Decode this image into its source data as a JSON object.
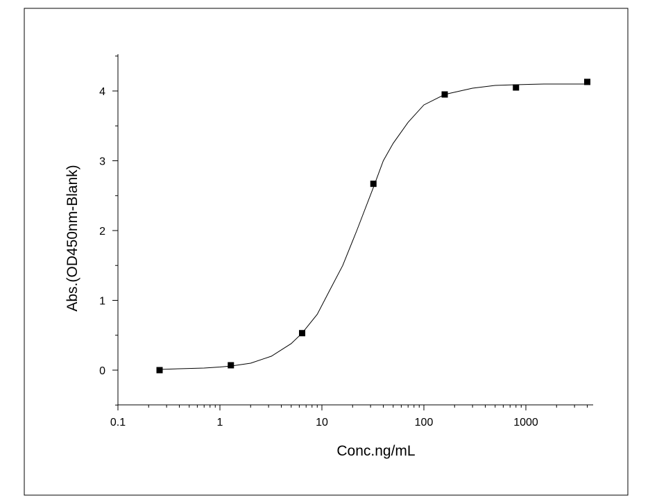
{
  "chart_data": {
    "type": "scatter",
    "xlabel": "Conc.ng/mL",
    "ylabel": "Abs.(OD450nm-Blank)",
    "x_scale": "log",
    "xlim": [
      0.1,
      5000
    ],
    "ylim": [
      -0.5,
      4.5
    ],
    "x_ticks": [
      0.1,
      1,
      10,
      100,
      1000
    ],
    "x_tick_labels": [
      "0.1",
      "1",
      "10",
      "100",
      "1000"
    ],
    "y_ticks": [
      0,
      1,
      2,
      3,
      4
    ],
    "y_tick_labels": [
      "0",
      "1",
      "2",
      "3",
      "4"
    ],
    "grid": false,
    "legend": "none",
    "series": [
      {
        "x": [
          0.256,
          1.28,
          6.4,
          32,
          160,
          800,
          4000
        ],
        "y": [
          0.0,
          0.07,
          0.53,
          2.67,
          3.95,
          4.05,
          4.13
        ],
        "marker": "square"
      }
    ],
    "fit_curve": {
      "x": [
        0.256,
        0.4,
        0.7,
        1.0,
        1.3,
        2.0,
        3.2,
        5.0,
        6.4,
        9.0,
        12,
        16,
        22,
        32,
        40,
        50,
        70,
        100,
        160,
        300,
        500,
        800,
        1500,
        4000
      ],
      "y": [
        0.01,
        0.02,
        0.03,
        0.045,
        0.06,
        0.1,
        0.2,
        0.38,
        0.53,
        0.8,
        1.15,
        1.5,
        2.0,
        2.62,
        3.0,
        3.25,
        3.55,
        3.8,
        3.95,
        4.04,
        4.08,
        4.09,
        4.1,
        4.1
      ]
    }
  }
}
